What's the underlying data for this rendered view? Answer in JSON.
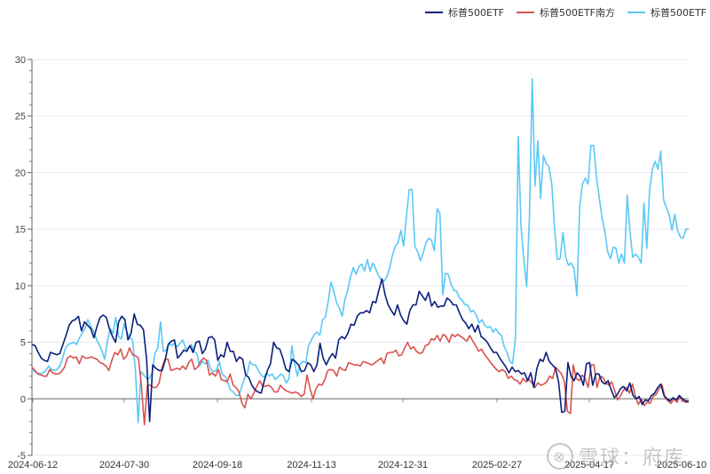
{
  "legend": [
    {
      "label": "标普500ETF",
      "color": "#0a1f7a"
    },
    {
      "label": "标普500ETF南方",
      "color": "#d9534f"
    },
    {
      "label": "标普500ETF",
      "color": "#5bc8f5"
    }
  ],
  "watermark": {
    "logo": "⊗",
    "text": "雪球：府库"
  },
  "chart_data": {
    "type": "line",
    "title": "",
    "xlabel": "",
    "ylabel": "",
    "ylim": [
      -5,
      30
    ],
    "yticks": [
      -5,
      0,
      5,
      10,
      15,
      20,
      25,
      30
    ],
    "grid": true,
    "legend_position": "top-right",
    "x_tick_labels": [
      "2024-06-12",
      "2024-07-30",
      "2024-09-18",
      "2024-11-13",
      "2024-12-31",
      "2025-02-27",
      "2025-04-17",
      "2025-06-10"
    ],
    "x_range": [
      "2024-06-12",
      "2025-06-10"
    ],
    "series": [
      {
        "name": "标普500ETF",
        "color": "#0a1f7a",
        "values": [
          4.8,
          4.7,
          4.1,
          3.6,
          3.4,
          3.3,
          4.1,
          4.0,
          3.9,
          4.0,
          4.8,
          5.6,
          6.5,
          6.9,
          7.0,
          7.3,
          6.0,
          6.8,
          6.5,
          6.2,
          5.4,
          6.4,
          7.2,
          7.4,
          7.2,
          6.2,
          5.5,
          5.0,
          6.8,
          7.3,
          7.0,
          5.2,
          5.8,
          7.5,
          6.6,
          6.5,
          6.1,
          3.5,
          -2.0,
          3.0,
          2.7,
          2.5,
          2.5,
          3.4,
          4.8,
          5.1,
          5.2,
          3.6,
          3.9,
          4.3,
          4.2,
          4.7,
          4.1,
          5.0,
          5.1,
          4.0,
          4.4,
          5.4,
          5.5,
          5.2,
          3.4,
          3.9,
          3.7,
          5.0,
          4.2,
          4.2,
          3.3,
          3.7,
          3.5,
          2.1,
          1.9,
          1.2,
          0.8,
          0.6,
          0.5,
          1.6,
          2.5,
          3.1,
          5.0,
          4.5,
          4.4,
          3.6,
          2.6,
          2.4,
          3.5,
          3.3,
          3.0,
          2.4,
          2.5,
          3.2,
          3.0,
          2.4,
          3.0,
          4.9,
          3.6,
          3.0,
          3.6,
          4.0,
          3.6,
          5.2,
          5.5,
          5.3,
          5.8,
          6.6,
          6.5,
          7.3,
          7.6,
          7.6,
          7.8,
          7.6,
          8.6,
          8.5,
          9.6,
          10.6,
          9.2,
          8.3,
          7.8,
          7.4,
          8.3,
          7.4,
          6.9,
          6.6,
          7.8,
          8.3,
          8.3,
          9.5,
          9.1,
          8.7,
          9.4,
          8.2,
          8.6,
          8.1,
          8.2,
          8.2,
          8.9,
          8.7,
          8.3,
          8.3,
          7.6,
          7.0,
          6.7,
          6.2,
          6.6,
          5.9,
          6.5,
          5.5,
          5.3,
          5.0,
          4.5,
          4.1,
          4.1,
          3.6,
          3.2,
          2.8,
          2.3,
          2.8,
          2.4,
          2.5,
          2.2,
          2.3,
          1.6,
          2.3,
          1.0,
          2.7,
          3.5,
          3.3,
          4.1,
          3.3,
          3.0,
          2.7,
          1.5,
          -1.2,
          -1.1,
          3.2,
          2.0,
          1.6,
          2.3,
          2.0,
          1.2,
          3.1,
          3.2,
          1.2,
          2.2,
          2.2,
          1.5,
          1.3,
          1.6,
          0.8,
          0.1,
          0.4,
          0.9,
          1.1,
          0.7,
          1.4,
          0.3,
          0.0,
          0.2,
          -0.5,
          -0.1,
          -0.2,
          0.3,
          0.5,
          1.0,
          1.3,
          0.3,
          0.0,
          -0.2,
          0.1,
          -0.1,
          0.3,
          0.0,
          -0.2,
          -0.2
        ]
      },
      {
        "name": "标普500ETF南方",
        "color": "#d9534f",
        "values": [
          2.8,
          2.5,
          2.2,
          2.1,
          2.0,
          2.0,
          2.6,
          2.3,
          2.2,
          2.2,
          2.4,
          2.8,
          3.6,
          3.8,
          3.6,
          3.7,
          3.1,
          3.8,
          3.6,
          3.6,
          3.7,
          3.6,
          3.5,
          3.2,
          3.1,
          2.9,
          2.5,
          3.4,
          4.1,
          3.9,
          4.4,
          3.5,
          3.8,
          4.5,
          3.9,
          3.8,
          3.6,
          1.2,
          -2.3,
          1.2,
          1.2,
          1.0,
          1.0,
          1.4,
          2.8,
          3.5,
          3.5,
          2.5,
          2.6,
          2.7,
          2.6,
          2.9,
          2.6,
          3.2,
          3.5,
          2.6,
          2.8,
          3.3,
          3.6,
          3.4,
          2.1,
          2.3,
          2.0,
          2.6,
          1.7,
          1.6,
          1.5,
          2.2,
          1.2,
          1.0,
          0.6,
          -0.4,
          -0.8,
          0.4,
          0.0,
          0.5,
          1.1,
          1.6,
          1.1,
          1.1,
          1.2,
          1.0,
          0.6,
          0.6,
          1.2,
          0.9,
          0.7,
          0.6,
          0.5,
          0.6,
          0.5,
          0.2,
          0.4,
          2.1,
          0.9,
          0.0,
          0.9,
          1.3,
          1.2,
          1.7,
          2.5,
          2.6,
          2.5,
          2.0,
          2.8,
          2.6,
          2.5,
          3.2,
          3.1,
          3.0,
          3.0,
          2.9,
          3.3,
          3.2,
          3.1,
          3.0,
          3.2,
          3.4,
          3.6,
          3.1,
          4.0,
          4.1,
          4.1,
          4.3,
          3.8,
          3.9,
          4.5,
          5.0,
          4.4,
          4.6,
          4.2,
          4.0,
          4.1,
          4.7,
          4.8,
          5.3,
          5.2,
          5.6,
          5.1,
          5.7,
          5.5,
          5.0,
          5.7,
          5.5,
          5.7,
          5.5,
          5.3,
          5.1,
          5.6,
          5.1,
          4.7,
          4.2,
          4.4,
          3.9,
          3.6,
          3.2,
          2.9,
          2.6,
          2.4,
          2.6,
          2.4,
          1.8,
          2.0,
          1.7,
          1.6,
          1.3,
          1.8,
          1.5,
          1.7,
          1.4,
          1.0,
          1.4,
          1.2,
          1.3,
          1.5,
          2.0,
          1.8,
          2.8,
          2.5,
          2.2,
          1.5,
          -1.1,
          -1.3,
          3.0,
          1.8,
          1.6,
          2.1,
          1.8,
          1.0,
          3.0,
          3.0,
          1.0,
          2.0,
          1.9,
          1.4,
          1.2,
          1.5,
          0.7,
          -0.1,
          0.3,
          0.8,
          1.0,
          0.5,
          1.3,
          0.2,
          -0.5,
          0.0,
          -0.6,
          -0.3,
          -0.4,
          0.2,
          0.4,
          0.9,
          1.2,
          0.1,
          -0.2,
          -0.4,
          0.0,
          -0.3,
          0.2,
          -0.2,
          -0.3,
          -0.3
        ]
      },
      {
        "name": "标普500ETF",
        "color": "#5bc8f5",
        "values": [
          2.6,
          2.4,
          2.3,
          2.2,
          2.3,
          2.5,
          2.9,
          2.6,
          2.5,
          2.6,
          2.9,
          3.6,
          4.5,
          4.8,
          4.9,
          5.0,
          4.8,
          5.4,
          5.8,
          6.2,
          7.0,
          6.4,
          6.0,
          5.3,
          4.8,
          4.3,
          3.5,
          5.1,
          6.2,
          5.8,
          7.2,
          5.5,
          5.3,
          6.6,
          5.9,
          5.4,
          5.2,
          2.6,
          -2.1,
          2.4,
          2.1,
          1.8,
          1.8,
          2.3,
          4.0,
          4.5,
          6.8,
          4.2,
          4.3,
          4.9,
          4.7,
          4.9,
          4.6,
          4.9,
          5.2,
          4.4,
          4.5,
          4.8,
          4.2,
          4.0,
          2.9,
          3.3,
          3.1,
          3.4,
          2.6,
          2.4,
          2.5,
          3.3,
          2.2,
          2.0,
          1.5,
          0.8,
          0.6,
          0.3,
          0.3,
          1.0,
          1.8,
          2.2,
          3.3,
          3.0,
          3.0,
          2.5,
          2.1,
          1.9,
          2.3,
          2.0,
          2.2,
          1.7,
          1.9,
          2.2,
          2.0,
          1.4,
          1.8,
          4.7,
          3.1,
          2.0,
          3.1,
          3.3,
          3.2,
          4.7,
          5.2,
          5.7,
          5.9,
          5.6,
          7.0,
          7.2,
          8.6,
          10.3,
          9.5,
          8.5,
          8.0,
          7.3,
          8.8,
          9.6,
          10.8,
          11.6,
          11.0,
          11.7,
          11.9,
          11.3,
          12.3,
          11.3,
          12.0,
          11.5,
          10.9,
          10.5,
          10.4,
          10.8,
          11.6,
          12.7,
          13.5,
          13.8,
          14.9,
          13.5,
          16.2,
          18.5,
          18.5,
          13.5,
          13.0,
          12.2,
          12.9,
          13.8,
          14.2,
          14.0,
          13.1,
          16.8,
          16.4,
          9.2,
          11.1,
          11.0,
          10.1,
          9.6,
          9.5,
          8.9,
          8.7,
          8.3,
          8.3,
          7.7,
          7.8,
          7.4,
          6.7,
          7.0,
          6.5,
          6.3,
          6.4,
          5.9,
          6.2,
          5.8,
          5.6,
          4.6,
          4.1,
          3.3,
          3.1,
          5.5,
          23.2,
          15.2,
          12.3,
          9.9,
          16.0,
          28.3,
          18.8,
          22.8,
          17.7,
          21.5,
          20.8,
          20.5,
          19.0,
          15.0,
          12.3,
          12.4,
          14.7,
          12.5,
          11.8,
          12.0,
          11.5,
          9.1,
          17.0,
          19.0,
          19.5,
          19.0,
          22.4,
          22.4,
          19.6,
          17.8,
          16.0,
          14.8,
          13.0,
          12.4,
          13.4,
          13.3,
          12.0,
          12.8,
          12.0,
          18.0,
          14.7,
          12.5,
          12.8,
          12.5,
          12.0,
          17.3,
          13.3,
          18.4,
          20.3,
          21.0,
          20.3,
          21.9,
          17.6,
          16.9,
          16.3,
          14.9,
          16.3,
          14.9,
          14.3,
          14.2,
          15.0,
          15.0
        ]
      }
    ]
  }
}
